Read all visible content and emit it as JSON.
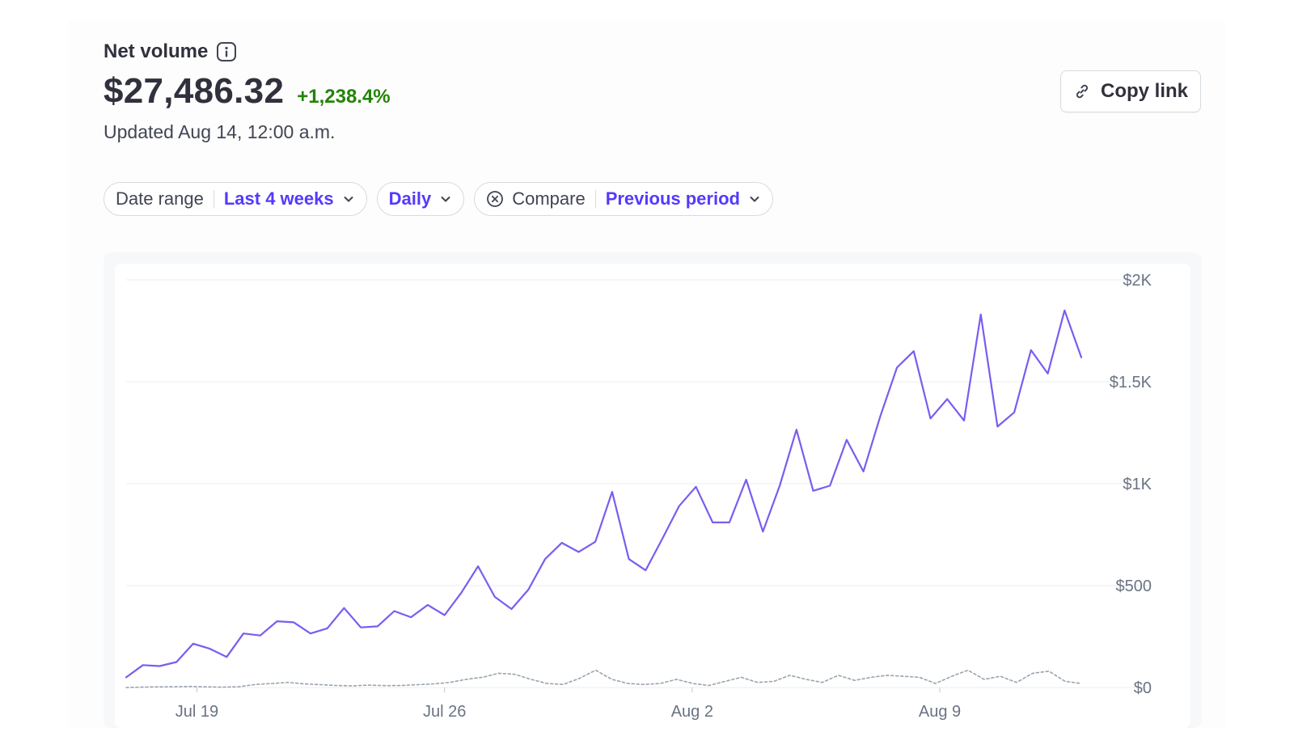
{
  "header": {
    "title": "Net volume",
    "amount": "$27,486.32",
    "delta": "+1,238.4%",
    "updated": "Updated Aug 14, 12:00 a.m."
  },
  "actions": {
    "copy_link": "Copy link"
  },
  "filters": {
    "date_range_label": "Date range",
    "date_range_value": "Last 4 weeks",
    "interval_value": "Daily",
    "compare_label": "Compare",
    "compare_value": "Previous period"
  },
  "colors": {
    "accent": "#533afd",
    "positive": "#228403",
    "series_current": "#7b5cf0",
    "series_previous": "#9aa3ae"
  },
  "icons": [
    "info-icon",
    "link-icon",
    "chevron-down-icon",
    "close-circle-icon"
  ],
  "chart_data": {
    "type": "line",
    "title": "",
    "xlabel": "",
    "ylabel": "",
    "x_ticks": [
      "Jul 19",
      "Jul 26",
      "Aug 2",
      "Aug 9"
    ],
    "y_ticks": [
      "$2K",
      "$1.5K",
      "$1K",
      "$500",
      "$0"
    ],
    "ylim": [
      0,
      2000
    ],
    "grid": true,
    "legend": "none",
    "series": [
      {
        "style": "solid",
        "values": [
          50,
          110,
          105,
          125,
          215,
          190,
          150,
          265,
          255,
          325,
          320,
          265,
          290,
          390,
          295,
          300,
          375,
          345,
          405,
          355,
          465,
          595,
          445,
          385,
          480,
          630,
          710,
          665,
          715,
          960,
          630,
          575,
          730,
          890,
          985,
          810,
          810,
          1020,
          765,
          990,
          1265,
          965,
          990,
          1215,
          1060,
          1330,
          1570,
          1650,
          1320,
          1415,
          1310,
          1830,
          1280,
          1350,
          1655,
          1540,
          1850,
          1620
        ]
      },
      {
        "style": "dashed",
        "values": [
          0,
          2,
          3,
          4,
          5,
          3,
          2,
          4,
          15,
          20,
          25,
          18,
          14,
          10,
          8,
          12,
          9,
          10,
          14,
          18,
          25,
          40,
          50,
          70,
          65,
          40,
          20,
          15,
          45,
          85,
          40,
          20,
          15,
          20,
          40,
          20,
          10,
          30,
          50,
          25,
          30,
          60,
          40,
          25,
          60,
          35,
          50,
          60,
          55,
          50,
          20,
          55,
          85,
          40,
          55,
          25,
          70,
          80,
          30,
          20
        ]
      }
    ]
  }
}
